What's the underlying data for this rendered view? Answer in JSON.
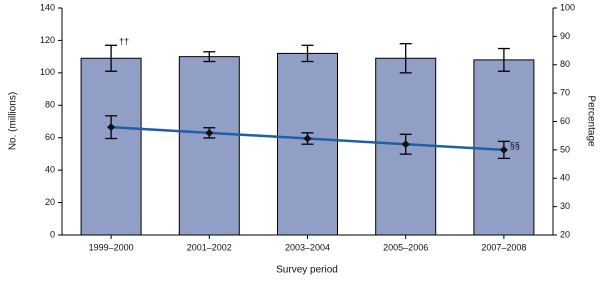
{
  "chart_data": {
    "type": "bar_line",
    "x_label": "Survey period",
    "y_label": "No. (millions)",
    "y2_label": "Percentage",
    "categories": [
      "1999–2000",
      "2001–2002",
      "2003–2004",
      "2005–2006",
      "2007–2008"
    ],
    "series": [
      {
        "type": "bar",
        "color": "#919fc7",
        "values": [
          109,
          110,
          112,
          109,
          108
        ],
        "errors": [
          8,
          3,
          5,
          9,
          7
        ]
      },
      {
        "type": "line",
        "axis": "y2",
        "color": "#1f5fa8",
        "values": [
          58,
          56,
          54,
          52,
          50
        ],
        "errors": [
          4,
          1.8,
          2,
          3.5,
          3
        ]
      }
    ],
    "annotations": [
      "††",
      "§§"
    ],
    "ylim": [
      0,
      140
    ],
    "yticks": [
      0,
      20,
      40,
      60,
      80,
      100,
      120,
      140
    ],
    "y2lim": [
      20,
      100
    ],
    "y2ticks": [
      20,
      30,
      40,
      50,
      60,
      70,
      80,
      90,
      100
    ]
  }
}
